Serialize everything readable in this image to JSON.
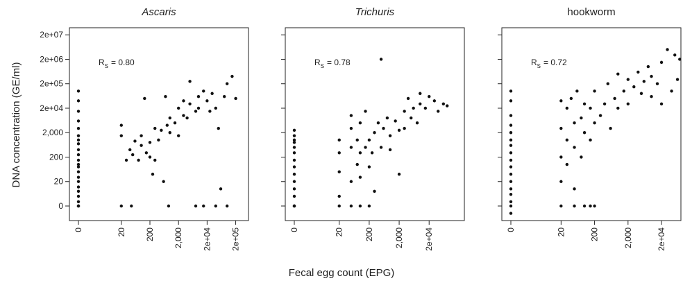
{
  "xlabel": "Fecal egg count (EPG)",
  "ylabel": "DNA concentration (GE/ml)",
  "chart_data": [
    {
      "type": "scatter",
      "title": "Ascaris",
      "title_italic": true,
      "annotation": {
        "symbol": "R",
        "subscript": "S",
        "text": "= 0.80"
      },
      "xlim": [
        0,
        560000
      ],
      "ylim": [
        0,
        39000000
      ],
      "xticks": [
        0,
        20,
        200,
        {
          "value": 2000,
          "label": "2,000"
        },
        {
          "value": 20000,
          "label": "2e+04"
        },
        {
          "value": 200000,
          "label": "2e+05"
        }
      ],
      "yticks": [
        0,
        20,
        200,
        {
          "value": 2000,
          "label": "2,000"
        },
        {
          "value": 20000,
          "label": "2e+04"
        },
        {
          "value": 200000,
          "label": "2e+05"
        },
        {
          "value": 2000000,
          "label": "2e+06"
        },
        {
          "value": 20000000,
          "label": "2e+07"
        }
      ],
      "show_ytick_labels": true,
      "series": [
        {
          "color": "#111111",
          "x": [
            0,
            0,
            0,
            0,
            0,
            0,
            0,
            0,
            0,
            0,
            0,
            0,
            0,
            0,
            0,
            0,
            0,
            0,
            0,
            0,
            0,
            0,
            0,
            20,
            45,
            900,
            8000,
            15000,
            40000,
            100000,
            20,
            20,
            30,
            40,
            50,
            60,
            80,
            100,
            100,
            130,
            150,
            200,
            200,
            250,
            300,
            300,
            400,
            500,
            600,
            700,
            800,
            1000,
            1000,
            1500,
            2000,
            2000,
            3000,
            3000,
            4000,
            5000,
            5000,
            8000,
            10000,
            10000,
            15000,
            20000,
            25000,
            30000,
            40000,
            50000,
            60000,
            80000,
            100000,
            150000,
            200000
          ],
          "y": [
            0,
            0,
            0,
            3,
            5,
            8,
            12,
            20,
            30,
            50,
            80,
            100,
            150,
            250,
            400,
            700,
            1000,
            1500,
            3000,
            6000,
            15000,
            40000,
            100000,
            0,
            0,
            0,
            0,
            0,
            0,
            0,
            1500,
            4000,
            150,
            400,
            250,
            900,
            150,
            600,
            1500,
            50000,
            300,
            200,
            800,
            40,
            150,
            3000,
            1000,
            2500,
            20,
            60000,
            4000,
            2000,
            8000,
            5000,
            1500,
            20000,
            10000,
            40000,
            8000,
            250000,
            30000,
            15000,
            60000,
            20000,
            100000,
            40000,
            15000,
            80000,
            20000,
            3000,
            10,
            60000,
            200000,
            400000,
            50000
          ]
        }
      ]
    },
    {
      "type": "scatter",
      "title": "Trichuris",
      "title_italic": true,
      "annotation": {
        "symbol": "R",
        "subscript": "S",
        "text": "= 0.78"
      },
      "xlim": [
        0,
        300000
      ],
      "ylim": [
        0,
        39000000
      ],
      "xticks": [
        0,
        20,
        200,
        {
          "value": 2000,
          "label": "2,000"
        },
        {
          "value": 20000,
          "label": "2e+04"
        }
      ],
      "yticks": [
        0,
        20,
        200,
        {
          "value": 2000,
          "label": "2,000"
        },
        {
          "value": 20000,
          "label": "2e+04"
        },
        {
          "value": 200000,
          "label": "2e+05"
        },
        {
          "value": 2000000,
          "label": "2e+06"
        },
        {
          "value": 20000000,
          "label": "2e+07"
        }
      ],
      "show_ytick_labels": false,
      "series": [
        {
          "color": "#111111",
          "x": [
            0,
            0,
            0,
            0,
            0,
            0,
            0,
            0,
            0,
            0,
            0,
            0,
            0,
            0,
            0,
            20,
            20,
            20,
            20,
            20,
            50,
            50,
            50,
            50,
            50,
            80,
            80,
            100,
            100,
            100,
            100,
            150,
            150,
            200,
            200,
            200,
            250,
            300,
            300,
            400,
            500,
            500,
            600,
            800,
            1000,
            1000,
            1500,
            2000,
            2000,
            3000,
            3000,
            4000,
            5000,
            6000,
            8000,
            10000,
            10000,
            15000,
            20000,
            30000,
            40000,
            60000,
            80000
          ],
          "y": [
            0,
            0,
            2,
            5,
            10,
            20,
            40,
            80,
            150,
            300,
            500,
            800,
            1000,
            1500,
            2500,
            0,
            5,
            50,
            300,
            1000,
            0,
            20,
            500,
            3000,
            10000,
            100,
            1000,
            0,
            30,
            300,
            5000,
            500,
            15000,
            0,
            80,
            1000,
            300,
            2000,
            8,
            5000,
            500,
            2000000,
            3000,
            8000,
            1500,
            400,
            6000,
            2500,
            40,
            15000,
            3000,
            50000,
            8000,
            20000,
            5000,
            30000,
            80000,
            20000,
            60000,
            40000,
            15000,
            30000,
            25000
          ]
        }
      ]
    },
    {
      "type": "scatter",
      "title": "hookworm",
      "title_italic": false,
      "annotation": {
        "symbol": "R",
        "subscript": "S",
        "text": "= 0.72"
      },
      "xlim": [
        0,
        76000
      ],
      "ylim": [
        0,
        39000000
      ],
      "xticks": [
        0,
        20,
        200,
        {
          "value": 2000,
          "label": "2,000"
        },
        {
          "value": 20000,
          "label": "2e+04"
        }
      ],
      "yticks": [
        0,
        20,
        200,
        {
          "value": 2000,
          "label": "2,000"
        },
        {
          "value": 20000,
          "label": "2e+04"
        },
        {
          "value": 200000,
          "label": "2e+05"
        },
        {
          "value": 2000000,
          "label": "2e+06"
        },
        {
          "value": 20000000,
          "label": "2e+07"
        }
      ],
      "show_ytick_labels": false,
      "series": [
        {
          "color": "#111111",
          "x": [
            0,
            0,
            0,
            0,
            0,
            0,
            0,
            0,
            0,
            0,
            0,
            0,
            0,
            0,
            0,
            0,
            0,
            20,
            20,
            20,
            20,
            20,
            30,
            30,
            30,
            40,
            50,
            50,
            50,
            50,
            60,
            80,
            80,
            100,
            100,
            100,
            150,
            150,
            150,
            200,
            200,
            200,
            300,
            400,
            500,
            600,
            800,
            1000,
            1000,
            1500,
            2000,
            2000,
            3000,
            4000,
            5000,
            6000,
            8000,
            10000,
            10000,
            15000,
            20000,
            20000,
            30000,
            40000,
            50000,
            60000,
            70000
          ],
          "y": [
            0,
            1,
            3,
            6,
            10,
            20,
            40,
            80,
            150,
            300,
            600,
            1000,
            2000,
            4000,
            10000,
            40000,
            100000,
            0,
            20,
            200,
            3000,
            40000,
            100,
            1000,
            20000,
            50000,
            0,
            10,
            500,
            5000,
            100000,
            200,
            8000,
            0,
            2000,
            30000,
            0,
            1000,
            20000,
            0,
            5000,
            100000,
            10000,
            30000,
            200000,
            3000,
            50000,
            20000,
            500000,
            100000,
            30000,
            300000,
            150000,
            600000,
            80000,
            250000,
            1000000,
            400000,
            60000,
            200000,
            1500000,
            30000,
            5000000,
            100000,
            3000000,
            300000,
            2000000
          ]
        }
      ]
    }
  ]
}
